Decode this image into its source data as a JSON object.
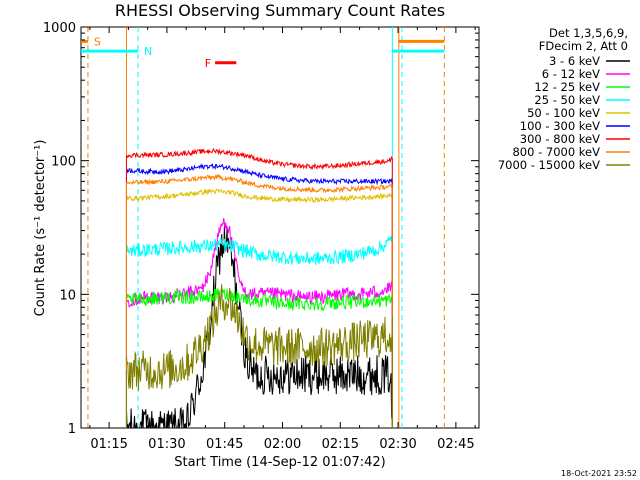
{
  "chart_data": {
    "type": "line",
    "title": "RHESSI Observing Summary Count Rates",
    "xlabel": "Start Time (14-Sep-12 01:07:42)",
    "ylabel": "Count Rate (s⁻¹ detector⁻¹)",
    "yscale": "log",
    "ylim": [
      1,
      1000
    ],
    "xlim_minutes": [
      67.7,
      171
    ],
    "x_ticks": [
      "01:15",
      "01:30",
      "01:45",
      "02:00",
      "02:15",
      "02:30",
      "02:45"
    ],
    "x_tick_minutes": [
      75,
      90,
      105,
      120,
      135,
      150,
      165
    ],
    "y_ticks": [
      "1",
      "10",
      "100",
      "1000"
    ],
    "y_tick_values": [
      1,
      10,
      100,
      1000
    ],
    "legend_header": [
      "Det 1,3,5,6,9,",
      "FDecim 2, Att 0"
    ],
    "legend_position": "right",
    "data_x_minutes": [
      79.5,
      84,
      90,
      95,
      99,
      101,
      102.5,
      104,
      104.8,
      105.6,
      106.5,
      107.5,
      108.5,
      109.5,
      111,
      113,
      116,
      120,
      125,
      130,
      135,
      140,
      145,
      148,
      148.5
    ],
    "series": [
      {
        "name": "3 - 6 keV",
        "color": "#000000",
        "values": [
          1,
          1,
          1,
          1,
          2.5,
          5,
          12,
          22,
          25,
          24,
          20,
          14,
          8,
          5,
          3,
          2.5,
          2.5,
          2.5,
          2.5,
          2.5,
          2.5,
          2.5,
          2.5,
          2.5,
          1
        ]
      },
      {
        "name": "6 - 12 keV",
        "color": "#ff00ff",
        "values": [
          9,
          9.5,
          9.5,
          10,
          11,
          14,
          22,
          32,
          35,
          34,
          28,
          20,
          14,
          11,
          10,
          10,
          10,
          10,
          9.5,
          9.5,
          10,
          10,
          10.5,
          11,
          12
        ]
      },
      {
        "name": "12 - 25 keV",
        "color": "#00ff00",
        "values": [
          9,
          9.2,
          9.5,
          9.5,
          9.5,
          9.6,
          9.8,
          10,
          10,
          10,
          10,
          9.8,
          9.6,
          9.5,
          9.2,
          9,
          8.8,
          8.5,
          8.5,
          8.5,
          8.7,
          8.8,
          9,
          9,
          9
        ]
      },
      {
        "name": "25 - 50 keV",
        "color": "#00ffff",
        "values": [
          21,
          21.5,
          22,
          22.5,
          23,
          23,
          23.5,
          23.5,
          23.5,
          23,
          23,
          22.5,
          22,
          21.5,
          21,
          20,
          19.5,
          19,
          18.5,
          18.5,
          19,
          20,
          22,
          25,
          28
        ]
      },
      {
        "name": "50 - 100 keV",
        "color": "#e0c000",
        "values": [
          52,
          53,
          54,
          56,
          58,
          59,
          59,
          59,
          58,
          58,
          58,
          57,
          56,
          55,
          54,
          53,
          52,
          51,
          51,
          51,
          52,
          53,
          54,
          55,
          55
        ]
      },
      {
        "name": "100 - 300 keV",
        "color": "#0000ff",
        "values": [
          85,
          83,
          83,
          86,
          90,
          91,
          91,
          90,
          90,
          89,
          88,
          87,
          86,
          84,
          82,
          79,
          76,
          73,
          71,
          70,
          70,
          70,
          70,
          70,
          70
        ]
      },
      {
        "name": "300 - 800 keV",
        "color": "#ff0000",
        "values": [
          110,
          110,
          111,
          114,
          117,
          118,
          118,
          117,
          116,
          115,
          114,
          113,
          112,
          111,
          109,
          104,
          98,
          94,
          91,
          90,
          92,
          95,
          98,
          100,
          105
        ]
      },
      {
        "name": "800 - 7000 keV",
        "color": "#ff8000",
        "values": [
          68,
          69,
          70,
          72,
          74,
          75,
          75,
          75,
          74,
          74,
          73,
          72,
          71,
          70,
          68,
          66,
          64,
          62,
          61,
          60,
          61,
          62,
          63,
          64,
          64
        ]
      },
      {
        "name": "7000 - 15000 keV",
        "color": "#808000",
        "values": [
          2.7,
          2.7,
          2.7,
          3,
          4.2,
          5.5,
          7,
          8.5,
          9,
          9,
          8.5,
          7.5,
          6.5,
          5.5,
          4.5,
          4.2,
          4.1,
          4,
          4,
          4,
          4.2,
          4.5,
          4.7,
          5,
          5
        ]
      }
    ],
    "flags": {
      "saa": {
        "label": "S",
        "color": "#ff8000",
        "level": 780,
        "intervals": [
          [
            67.7,
            69.5
          ],
          [
            150,
            162
          ]
        ]
      },
      "night": {
        "label": "N",
        "color": "#00ffff",
        "level": 660,
        "intervals": [
          [
            67.7,
            82.5
          ],
          [
            148.5,
            162
          ]
        ]
      },
      "flare": {
        "label": "F",
        "color": "#ff0000",
        "level": 540,
        "intervals": [
          [
            102.5,
            108
          ]
        ]
      }
    },
    "vertical_markers": [
      {
        "color": "#ff8000",
        "style": "dashed",
        "x": 69.5
      },
      {
        "color": "#ff8000",
        "style": "solid",
        "x": 79.5
      },
      {
        "color": "#00ffff",
        "style": "dashed",
        "x": 82.5
      },
      {
        "color": "#00ffff",
        "style": "solid",
        "x": 148.5
      },
      {
        "color": "#00ffff",
        "style": "dashed",
        "x": 151
      },
      {
        "color": "#ff8000",
        "style": "solid",
        "x": 150.2
      },
      {
        "color": "#ff8000",
        "style": "dashed",
        "x": 162
      }
    ],
    "timestamp": "18-Oct-2021 23:52"
  }
}
